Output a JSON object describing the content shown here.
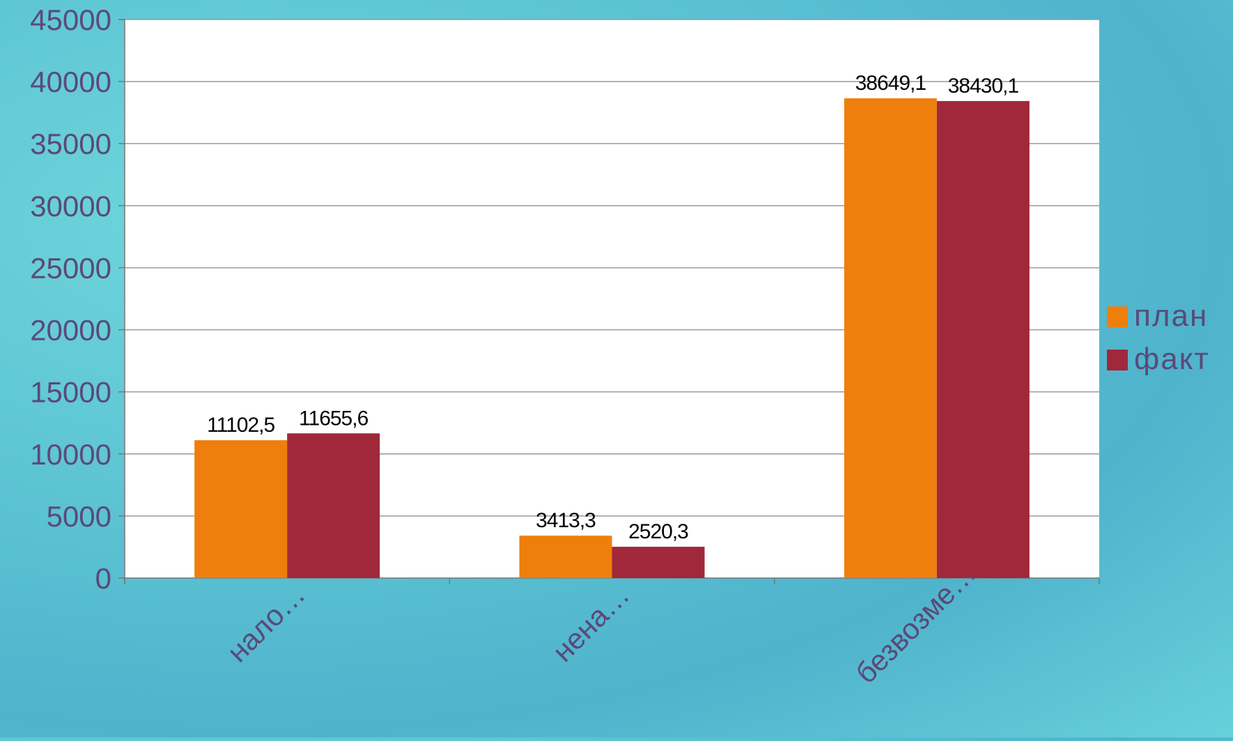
{
  "chart_data": {
    "type": "bar",
    "categories": [
      "нало…",
      "нена…",
      "безвозме…"
    ],
    "series": [
      {
        "name": "план",
        "values": [
          11102.5,
          3413.3,
          38649.1
        ],
        "labels": [
          "11102,5",
          "3413,3",
          "38649,1"
        ],
        "color": "#ef7f0c"
      },
      {
        "name": "факт",
        "values": [
          11655.6,
          2520.3,
          38430.1
        ],
        "labels": [
          "11655,6",
          "2520,3",
          "38430,1"
        ],
        "color": "#a0283a"
      }
    ],
    "ylim": [
      0,
      45000
    ],
    "yticks": [
      "0",
      "5000",
      "10000",
      "15000",
      "20000",
      "25000",
      "30000",
      "35000",
      "40000",
      "45000"
    ],
    "grid": true,
    "legend": "right",
    "colors": {
      "axis_text": "#5a4a78",
      "plot_bg": "#ffffff",
      "grid": "#999999"
    }
  }
}
